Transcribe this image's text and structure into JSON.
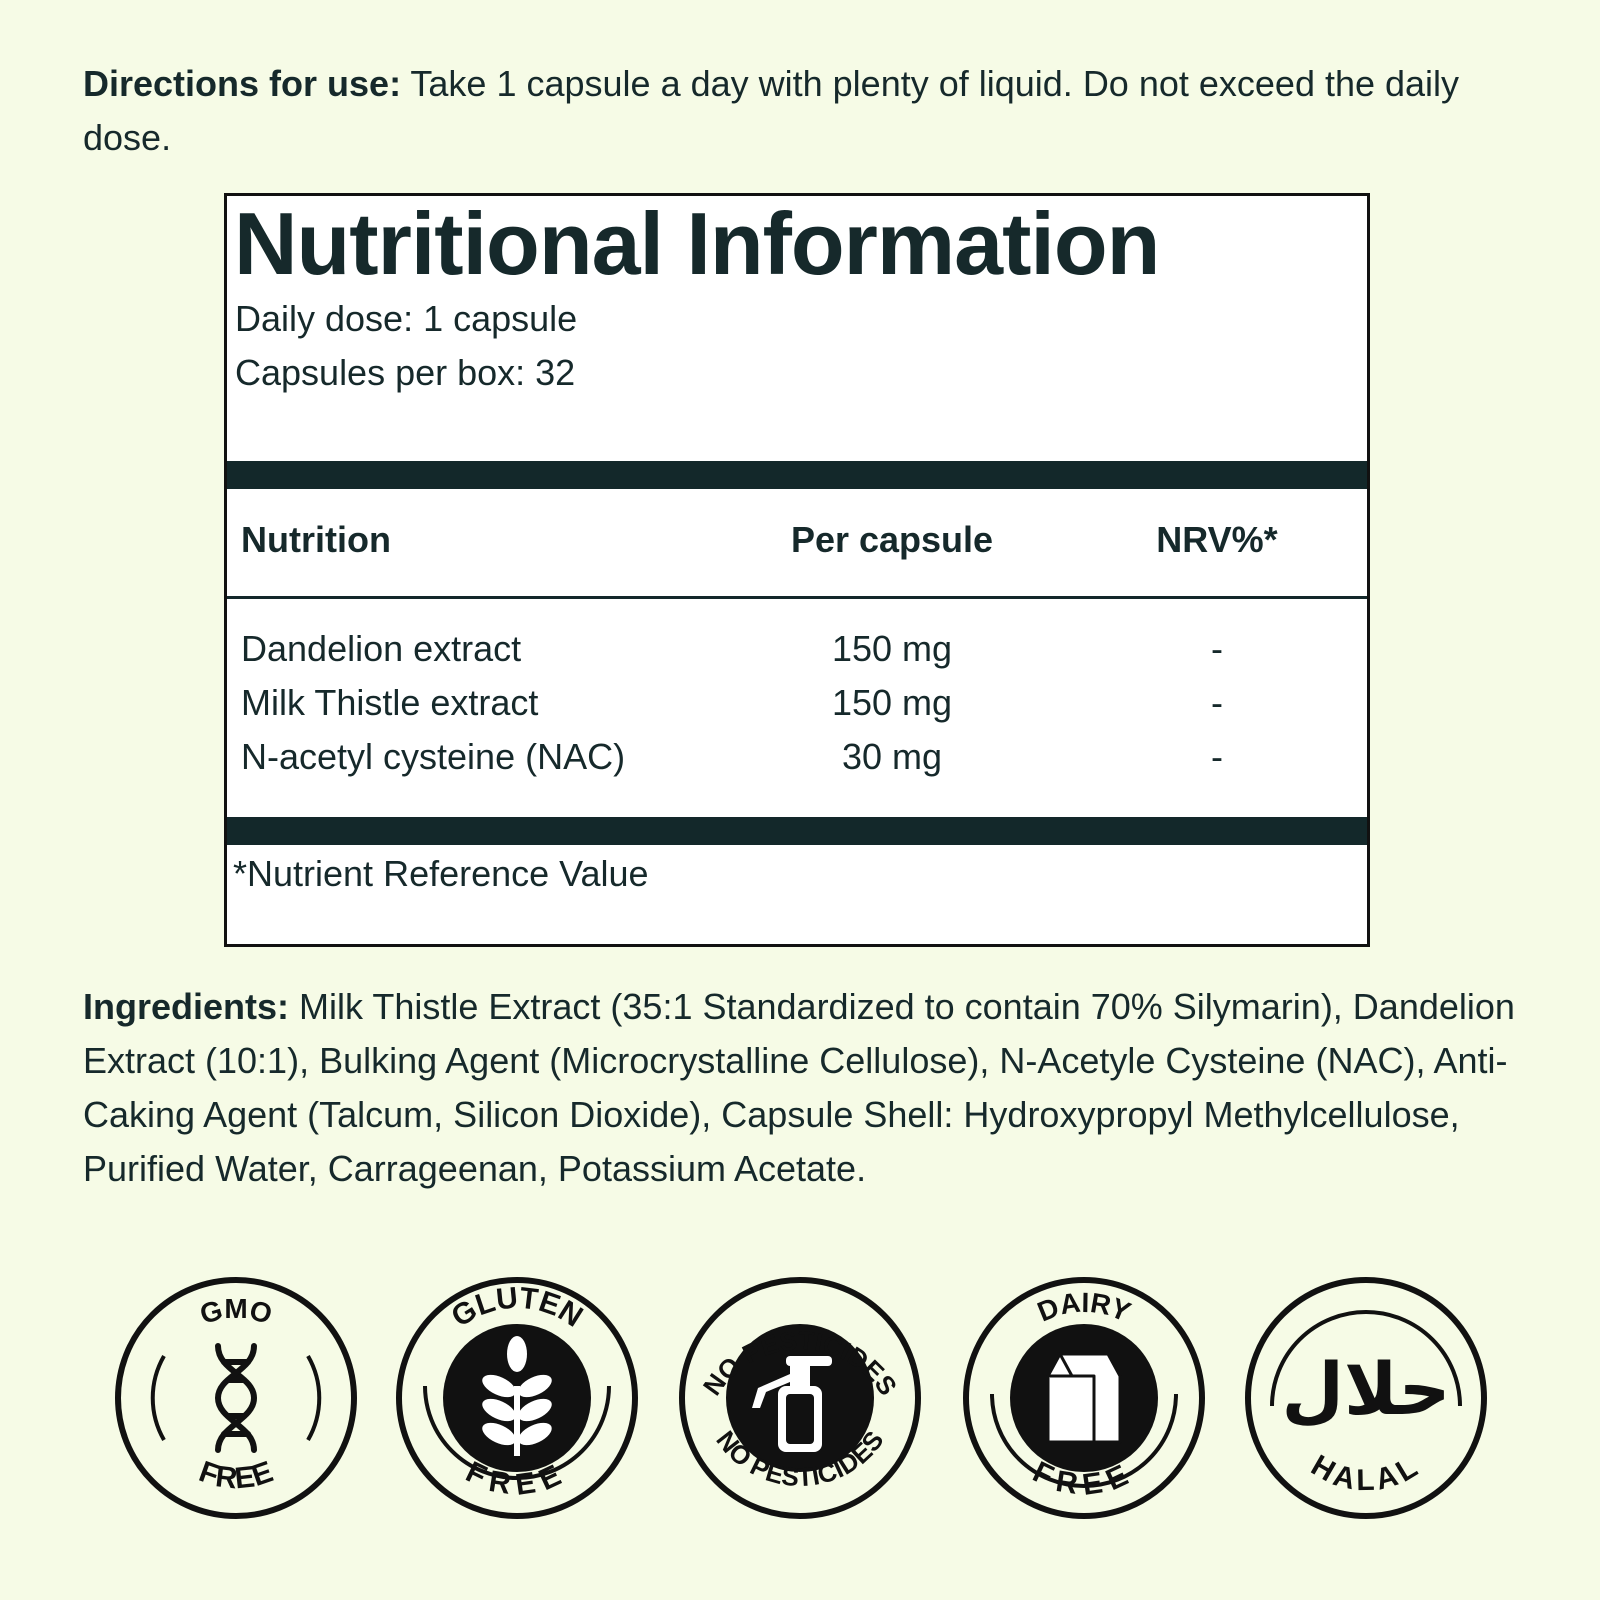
{
  "directions": {
    "label": "Directions for use:",
    "text": " Take 1 capsule a day with plenty of liquid. Do not exceed the daily dose."
  },
  "panel": {
    "title": "Nutritional Information",
    "daily_dose": "Daily dose: 1 capsule",
    "capsules_per_box": "Capsules per box: 32",
    "headers": [
      "Nutrition",
      "Per capsule",
      "NRV%*"
    ],
    "rows": [
      {
        "name": "Dandelion extract",
        "amount": "150 mg",
        "nrv": "-"
      },
      {
        "name": "Milk Thistle extract",
        "amount": "150 mg",
        "nrv": "-"
      },
      {
        "name": "N-acetyl cysteine (NAC)",
        "amount": "30 mg",
        "nrv": "-"
      }
    ],
    "footnote": "*Nutrient Reference Value"
  },
  "ingredients": {
    "label": "Ingredients:",
    "text": " Milk Thistle Extract (35:1 Standardized to contain 70% Silymarin), Dandelion Extract (10:1), Bulking Agent (Microcrystalline Cellulose), N-Acetyle Cysteine (NAC), Anti-Caking Agent (Talcum, Silicon Dioxide), Capsule Shell: Hydroxypropyl Methylcellulose, Purified Water, Carrageenan, Potassium Acetate."
  },
  "badges": [
    {
      "top": "GMO",
      "bottom": "FREE",
      "icon": "dna-icon"
    },
    {
      "top": "GLUTEN",
      "bottom": "FREE",
      "icon": "wheat-icon"
    },
    {
      "top": "NO PESTICIDES",
      "bottom": "NO PESTICIDES",
      "icon": "spray-bottle-icon"
    },
    {
      "top": "DAIRY",
      "bottom": "FREE",
      "icon": "milk-carton-icon"
    },
    {
      "top": "",
      "bottom": "HALAL",
      "icon": "halal-script-icon",
      "center_script": "حلال"
    }
  ],
  "colors": {
    "background": "#f6fbe6",
    "ink": "#16292b",
    "panel": "#ffffff"
  }
}
